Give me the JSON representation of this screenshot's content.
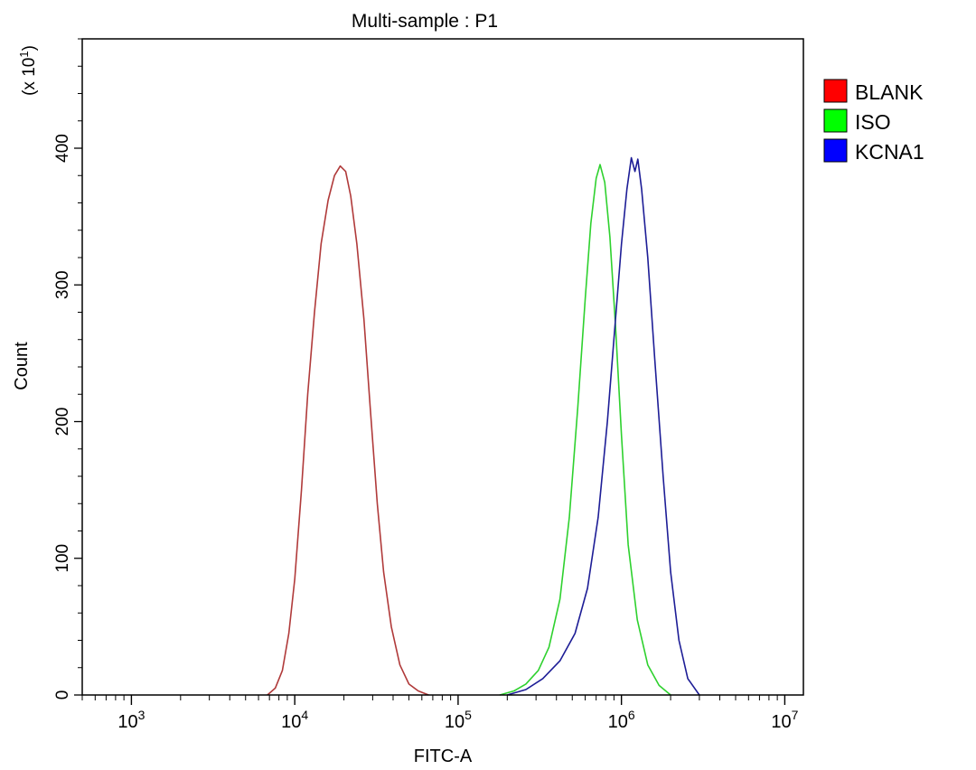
{
  "chart_data": {
    "type": "line",
    "title": "Multi-sample : P1",
    "xlabel": "FITC-A",
    "ylabel": "Count",
    "y_multiplier": "(x 10",
    "y_multiplier_exp": "1",
    "y_multiplier_close": ")",
    "x_scale": "log",
    "xlim": [
      500,
      13000000
    ],
    "ylim": [
      0,
      480
    ],
    "x_ticks": [
      {
        "value": 1000,
        "base": "10",
        "exp": "3"
      },
      {
        "value": 10000,
        "base": "10",
        "exp": "4"
      },
      {
        "value": 100000,
        "base": "10",
        "exp": "5"
      },
      {
        "value": 1000000,
        "base": "10",
        "exp": "6"
      },
      {
        "value": 10000000,
        "base": "10",
        "exp": "7"
      }
    ],
    "y_ticks": [
      0,
      100,
      200,
      300,
      400
    ],
    "legend_position": "top-right",
    "series": [
      {
        "name": "BLANK",
        "legend_color": "#ff0000",
        "line_color": "#b03a3a",
        "points": [
          [
            6800,
            0
          ],
          [
            7600,
            5
          ],
          [
            8400,
            18
          ],
          [
            9200,
            45
          ],
          [
            10000,
            85
          ],
          [
            11000,
            150
          ],
          [
            12000,
            220
          ],
          [
            13200,
            280
          ],
          [
            14500,
            330
          ],
          [
            16000,
            362
          ],
          [
            17500,
            380
          ],
          [
            19000,
            387
          ],
          [
            20500,
            383
          ],
          [
            22000,
            365
          ],
          [
            24000,
            330
          ],
          [
            26500,
            275
          ],
          [
            29000,
            210
          ],
          [
            32000,
            140
          ],
          [
            35000,
            90
          ],
          [
            39000,
            50
          ],
          [
            44000,
            22
          ],
          [
            50000,
            8
          ],
          [
            57000,
            3
          ],
          [
            66000,
            0
          ]
        ]
      },
      {
        "name": "ISO",
        "legend_color": "#00ff00",
        "line_color": "#2ed12e",
        "points": [
          [
            180000,
            0
          ],
          [
            220000,
            3
          ],
          [
            260000,
            8
          ],
          [
            310000,
            18
          ],
          [
            360000,
            35
          ],
          [
            420000,
            70
          ],
          [
            480000,
            130
          ],
          [
            540000,
            210
          ],
          [
            600000,
            290
          ],
          [
            650000,
            345
          ],
          [
            700000,
            378
          ],
          [
            740000,
            388
          ],
          [
            790000,
            375
          ],
          [
            850000,
            335
          ],
          [
            920000,
            270
          ],
          [
            1000000,
            190
          ],
          [
            1100000,
            110
          ],
          [
            1250000,
            55
          ],
          [
            1450000,
            22
          ],
          [
            1700000,
            7
          ],
          [
            2000000,
            0
          ]
        ]
      },
      {
        "name": "KCNA1",
        "legend_color": "#0000ff",
        "line_color": "#1d1d96",
        "points": [
          [
            200000,
            0
          ],
          [
            260000,
            4
          ],
          [
            330000,
            12
          ],
          [
            420000,
            25
          ],
          [
            520000,
            45
          ],
          [
            620000,
            78
          ],
          [
            720000,
            130
          ],
          [
            820000,
            200
          ],
          [
            920000,
            275
          ],
          [
            1000000,
            330
          ],
          [
            1080000,
            370
          ],
          [
            1150000,
            393
          ],
          [
            1210000,
            383
          ],
          [
            1260000,
            392
          ],
          [
            1330000,
            370
          ],
          [
            1450000,
            320
          ],
          [
            1600000,
            245
          ],
          [
            1800000,
            160
          ],
          [
            2000000,
            90
          ],
          [
            2250000,
            40
          ],
          [
            2550000,
            12
          ],
          [
            3000000,
            0
          ]
        ]
      }
    ]
  }
}
